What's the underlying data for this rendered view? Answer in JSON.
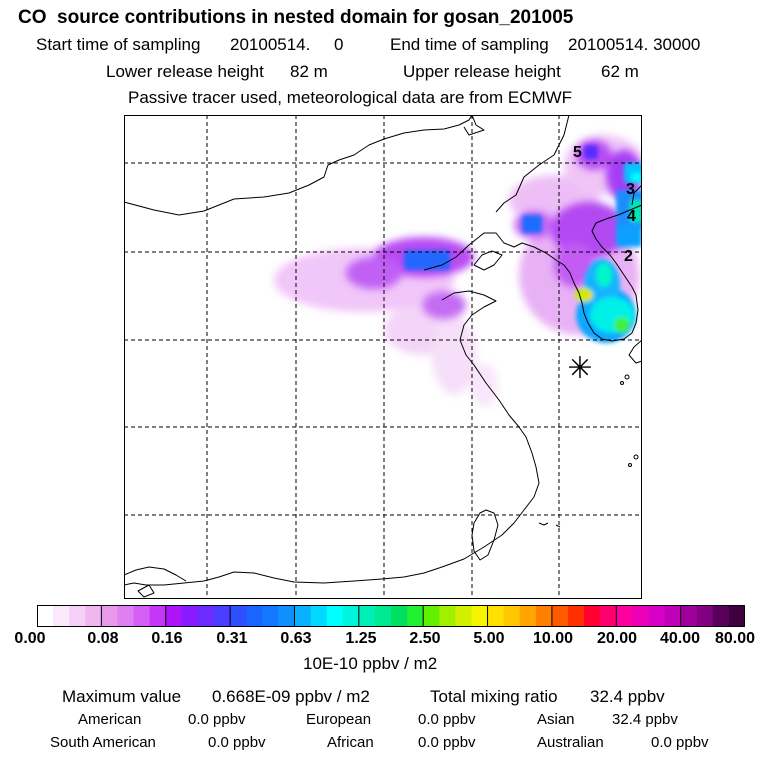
{
  "header": {
    "title": "CO  source contributions in nested domain for gosan_201005",
    "start_label": "Start time of sampling",
    "start_value": "20100514.     0",
    "end_label": "End time of sampling",
    "end_value": "20100514. 30000",
    "lower_label": "Lower release height",
    "lower_value": "82 m",
    "upper_label": "Upper release height",
    "upper_value": "62 m",
    "note": "Passive tracer used, meteorological data are from ECMWF"
  },
  "map": {
    "markers": [
      {
        "id": "5",
        "label": "5"
      },
      {
        "id": "3",
        "label": "3"
      },
      {
        "id": "4",
        "label": "4"
      },
      {
        "id": "2",
        "label": "2"
      }
    ],
    "receptor_symbol": "✳"
  },
  "colorbar": {
    "colors": [
      "#ffffff",
      "#fbe8fb",
      "#f6d0f6",
      "#f0b6f0",
      "#e89ae8",
      "#df7ff2",
      "#d35ff5",
      "#c436f8",
      "#ad14fa",
      "#8a1aff",
      "#6c2cff",
      "#4a3dff",
      "#2d4fff",
      "#1a64ff",
      "#1478ff",
      "#0f90ff",
      "#0ab0ff",
      "#00d8ff",
      "#00ffff",
      "#00f5dd",
      "#00efb8",
      "#00e890",
      "#00e060",
      "#20f030",
      "#60f000",
      "#a0f000",
      "#d0f000",
      "#f5f500",
      "#ffe000",
      "#ffc800",
      "#ffa500",
      "#ff8000",
      "#ff5a00",
      "#ff3000",
      "#ff0030",
      "#ff0070",
      "#ff00a0",
      "#ee00b8",
      "#d800c8",
      "#c000b8",
      "#a0009a",
      "#800080",
      "#58005a",
      "#400040"
    ],
    "tick_labels": [
      "0.00",
      "0.08",
      "0.16",
      "0.31",
      "0.63",
      "1.25",
      "2.50",
      "5.00",
      "10.00",
      "20.00",
      "40.00",
      "80.00"
    ],
    "units": "10E-10 ppbv / m2"
  },
  "summary": {
    "max_label": "Maximum value",
    "max_value": "0.668E-09 ppbv / m2",
    "total_label": "Total mixing ratio",
    "total_value": "32.4 ppbv",
    "regions": [
      {
        "name": "American",
        "value": "0.0 ppbv"
      },
      {
        "name": "European",
        "value": "0.0 ppbv"
      },
      {
        "name": "Asian",
        "value": "32.4 ppbv"
      },
      {
        "name": "South American",
        "value": "0.0 ppbv"
      },
      {
        "name": "African",
        "value": "0.0 ppbv"
      },
      {
        "name": "Australian",
        "value": "0.0 ppbv"
      }
    ]
  }
}
